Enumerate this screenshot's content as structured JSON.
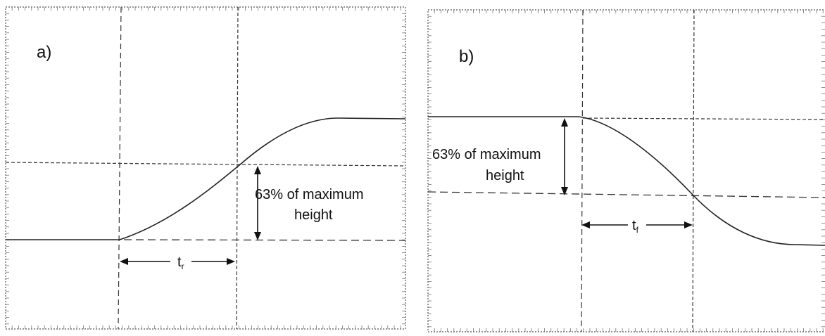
{
  "panels": [
    {
      "id": "a",
      "label": "a)",
      "annotation_line1": "63% of maximum",
      "annotation_line2": "height",
      "time_symbol": "t",
      "time_subscript": "r"
    },
    {
      "id": "b",
      "label": "b)",
      "annotation_line1": "63% of maximum",
      "annotation_line2": "height",
      "time_symbol": "t",
      "time_subscript": "f"
    }
  ]
}
